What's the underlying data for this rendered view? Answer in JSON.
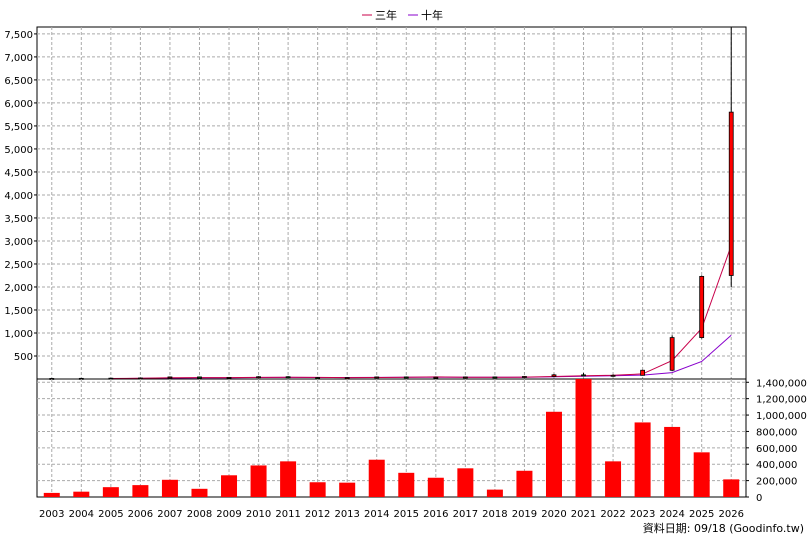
{
  "legend": {
    "items": [
      {
        "label": "三年",
        "color": "#c8004a"
      },
      {
        "label": "十年",
        "color": "#8800cc"
      }
    ]
  },
  "footer": {
    "text": "資料日期: 09/18  (Goodinfo.tw)"
  },
  "chart_data": [
    {
      "type": "candlestick",
      "years": [
        "2003",
        "2004",
        "2005",
        "2006",
        "2007",
        "2008",
        "2009",
        "2010",
        "2011",
        "2012",
        "2013",
        "2014",
        "2015",
        "2016",
        "2017",
        "2018",
        "2019",
        "2020",
        "2021",
        "2022",
        "2023",
        "2024",
        "2025",
        "2026"
      ],
      "candles": [
        {
          "open": 10,
          "high": 14,
          "low": 8,
          "close": 12
        },
        {
          "open": 12,
          "high": 16,
          "low": 10,
          "close": 14
        },
        {
          "open": 14,
          "high": 22,
          "low": 12,
          "close": 18
        },
        {
          "open": 18,
          "high": 26,
          "low": 15,
          "close": 22
        },
        {
          "open": 22,
          "high": 55,
          "low": 20,
          "close": 45
        },
        {
          "open": 45,
          "high": 50,
          "low": 15,
          "close": 20
        },
        {
          "open": 20,
          "high": 40,
          "low": 15,
          "close": 35
        },
        {
          "open": 35,
          "high": 60,
          "low": 30,
          "close": 50
        },
        {
          "open": 50,
          "high": 60,
          "low": 25,
          "close": 30
        },
        {
          "open": 30,
          "high": 40,
          "low": 22,
          "close": 28
        },
        {
          "open": 28,
          "high": 35,
          "low": 22,
          "close": 30
        },
        {
          "open": 30,
          "high": 50,
          "low": 28,
          "close": 45
        },
        {
          "open": 45,
          "high": 55,
          "low": 30,
          "close": 35
        },
        {
          "open": 35,
          "high": 45,
          "low": 28,
          "close": 40
        },
        {
          "open": 40,
          "high": 50,
          "low": 35,
          "close": 45
        },
        {
          "open": 45,
          "high": 50,
          "low": 30,
          "close": 35
        },
        {
          "open": 35,
          "high": 60,
          "low": 30,
          "close": 55
        },
        {
          "open": 55,
          "high": 110,
          "low": 45,
          "close": 90
        },
        {
          "open": 90,
          "high": 130,
          "low": 60,
          "close": 70
        },
        {
          "open": 70,
          "high": 100,
          "low": 50,
          "close": 80
        },
        {
          "open": 80,
          "high": 200,
          "low": 75,
          "close": 190
        },
        {
          "open": 190,
          "high": 950,
          "low": 170,
          "close": 900
        },
        {
          "open": 900,
          "high": 2250,
          "low": 880,
          "close": 2230
        },
        {
          "open": 2250,
          "high": 7650,
          "low": 2000,
          "close": 5800
        }
      ],
      "ma3_label": "三年",
      "ma10_label": "十年",
      "ma3": [
        null,
        null,
        10,
        15,
        25,
        30,
        30,
        35,
        40,
        35,
        30,
        32,
        40,
        45,
        38,
        38,
        42,
        55,
        70,
        80,
        110,
        400,
        1100,
        2900
      ],
      "ma10": [
        null,
        null,
        8,
        12,
        20,
        25,
        28,
        32,
        34,
        33,
        32,
        34,
        36,
        38,
        38,
        38,
        40,
        50,
        60,
        70,
        85,
        140,
        380,
        950
      ],
      "y_ticks": [
        500,
        1000,
        1500,
        2000,
        2500,
        3000,
        3500,
        4000,
        4500,
        5000,
        5500,
        6000,
        6500,
        7000,
        7500
      ],
      "y_tick_labels": [
        "500",
        "1,000",
        "1,500",
        "2,000",
        "2,500",
        "3,000",
        "3,500",
        "4,000",
        "4,500",
        "5,000",
        "5,500",
        "6,000",
        "6,500",
        "7,000",
        "7,500"
      ],
      "ylim": [
        0,
        7650
      ],
      "grid": true,
      "legend_position": "top-center"
    },
    {
      "type": "bar",
      "categories": [
        "2003",
        "2004",
        "2005",
        "2006",
        "2007",
        "2008",
        "2009",
        "2010",
        "2011",
        "2012",
        "2013",
        "2014",
        "2015",
        "2016",
        "2017",
        "2018",
        "2019",
        "2020",
        "2021",
        "2022",
        "2023",
        "2024",
        "2025",
        "2026"
      ],
      "values": [
        50000,
        65000,
        120000,
        145000,
        210000,
        100000,
        265000,
        385000,
        435000,
        180000,
        175000,
        455000,
        295000,
        235000,
        350000,
        90000,
        320000,
        1040000,
        1440000,
        435000,
        910000,
        855000,
        545000,
        215000
      ],
      "color": "#ff0000",
      "y_ticks": [
        0,
        200000,
        400000,
        600000,
        800000,
        1000000,
        1200000,
        1400000
      ],
      "y_tick_labels": [
        "0",
        "200,000",
        "400,000",
        "600,000",
        "800,000",
        "1,000,000",
        "1,200,000",
        "1,400,000"
      ],
      "ylim": [
        0,
        1440000
      ],
      "grid": true
    }
  ]
}
